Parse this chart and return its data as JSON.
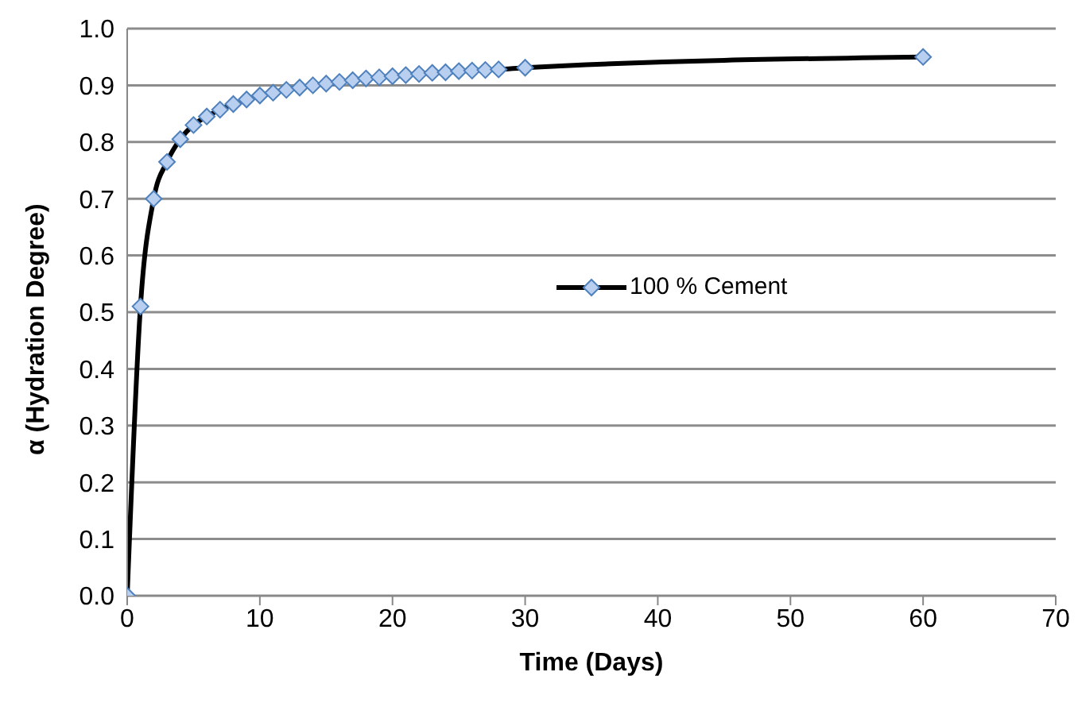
{
  "chart_data": {
    "type": "line",
    "xlabel": "Time (Days)",
    "ylabel": "α (Hydration Degree)",
    "x": [
      0,
      1,
      2,
      3,
      4,
      5,
      6,
      7,
      8,
      9,
      10,
      11,
      12,
      13,
      14,
      15,
      16,
      17,
      18,
      19,
      20,
      21,
      22,
      23,
      24,
      25,
      26,
      27,
      28,
      30,
      60
    ],
    "series": [
      {
        "name": "100 % Cement",
        "color": "#000000",
        "values": [
          0,
          0.51,
          0.7,
          0.765,
          0.805,
          0.83,
          0.845,
          0.857,
          0.867,
          0.875,
          0.882,
          0.887,
          0.892,
          0.896,
          0.9,
          0.903,
          0.906,
          0.909,
          0.912,
          0.914,
          0.916,
          0.918,
          0.92,
          0.922,
          0.923,
          0.925,
          0.926,
          0.927,
          0.928,
          0.931,
          0.95
        ]
      }
    ],
    "xlim": [
      0,
      70
    ],
    "xticks": [
      0,
      10,
      20,
      30,
      40,
      50,
      60,
      70
    ],
    "ylim": [
      0,
      1
    ],
    "yticks": [
      {
        "value": 0,
        "label": "0.0"
      },
      {
        "value": 0.1,
        "label": "0.1"
      },
      {
        "value": 0.2,
        "label": "0.2"
      },
      {
        "value": 0.3,
        "label": "0.3"
      },
      {
        "value": 0.4,
        "label": "0.4"
      },
      {
        "value": 0.5,
        "label": "0.5"
      },
      {
        "value": 0.6,
        "label": "0.6"
      },
      {
        "value": 0.7,
        "label": "0.7"
      },
      {
        "value": 0.8,
        "label": "0.8"
      },
      {
        "value": 0.9,
        "label": "0.9"
      },
      {
        "value": 1,
        "label": "1.0"
      }
    ],
    "grid": "y",
    "legend": "right",
    "marker": "diamond",
    "line_style": "solid"
  }
}
